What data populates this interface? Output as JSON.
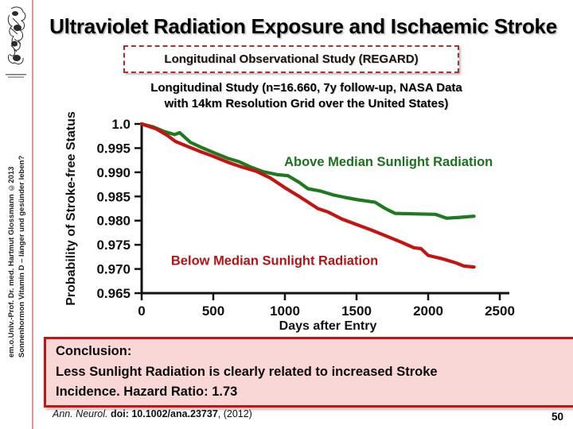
{
  "sidebar": {
    "credit_line1": "em.o.Univ.-Prof. Dr. med. Hartmut Glossmann ©2013",
    "credit_line2": "Sonnenhormon Vitamin D – länger und gesünder leben?"
  },
  "header": {
    "title": "Ultraviolet Radiation Exposure and Ischaemic Stroke",
    "study_badge": "Longitudinal Observational Study (REGARD)"
  },
  "chart_data": {
    "type": "line",
    "title": "Longitudinal Study (n=16.660, 7y follow-up, NASA Data with 14km Resolution Grid over the United States)",
    "title_line1": "Longitudinal Study (n=16.660, 7y follow-up, NASA Data",
    "title_line2": "with 14km Resolution Grid over the United States)",
    "xlabel": "Days after Entry",
    "ylabel": "Probability of Stroke-free Status",
    "xlim": [
      0,
      2500
    ],
    "ylim": [
      0.965,
      1.0
    ],
    "grid": false,
    "x_ticks": [
      0,
      500,
      1000,
      1500,
      2000,
      2500
    ],
    "y_ticks": [
      "1.0",
      "0.995",
      "0.990",
      "0.985",
      "0.980",
      "0.975",
      "0.970",
      "0.965"
    ],
    "y_tick_values": [
      1.0,
      0.995,
      0.99,
      0.985,
      0.98,
      0.975,
      0.97,
      0.965
    ],
    "series": [
      {
        "name": "Above Median Sunlight Radiation",
        "color": "#1f7a1f",
        "label_color": "#1e6f1e",
        "label_anchor": [
          995,
          0.9913
        ],
        "points": [
          [
            0,
            1.0
          ],
          [
            80,
            0.9994
          ],
          [
            160,
            0.9984
          ],
          [
            230,
            0.9978
          ],
          [
            265,
            0.9982
          ],
          [
            340,
            0.9962
          ],
          [
            420,
            0.9951
          ],
          [
            500,
            0.9941
          ],
          [
            600,
            0.9929
          ],
          [
            680,
            0.9922
          ],
          [
            760,
            0.9911
          ],
          [
            850,
            0.9901
          ],
          [
            950,
            0.9895
          ],
          [
            1020,
            0.9893
          ],
          [
            1100,
            0.9879
          ],
          [
            1160,
            0.9866
          ],
          [
            1250,
            0.9861
          ],
          [
            1340,
            0.9853
          ],
          [
            1420,
            0.9848
          ],
          [
            1510,
            0.9843
          ],
          [
            1630,
            0.9838
          ],
          [
            1690,
            0.9827
          ],
          [
            1720,
            0.9822
          ],
          [
            1770,
            0.9815
          ],
          [
            1900,
            0.9814
          ],
          [
            2050,
            0.9813
          ],
          [
            2130,
            0.9805
          ],
          [
            2230,
            0.9807
          ],
          [
            2320,
            0.9809
          ]
        ]
      },
      {
        "name": "Below Median Sunlight Radiation",
        "color": "#c31414",
        "label_color": "#b01515",
        "label_anchor": [
          205,
          0.9708
        ],
        "points": [
          [
            0,
            1.0
          ],
          [
            100,
            0.999
          ],
          [
            180,
            0.9976
          ],
          [
            235,
            0.9964
          ],
          [
            300,
            0.9956
          ],
          [
            400,
            0.9944
          ],
          [
            500,
            0.9933
          ],
          [
            600,
            0.9921
          ],
          [
            700,
            0.9911
          ],
          [
            800,
            0.9902
          ],
          [
            900,
            0.9888
          ],
          [
            1000,
            0.9868
          ],
          [
            1100,
            0.985
          ],
          [
            1230,
            0.9825
          ],
          [
            1300,
            0.9818
          ],
          [
            1400,
            0.9803
          ],
          [
            1500,
            0.9792
          ],
          [
            1600,
            0.9781
          ],
          [
            1700,
            0.9769
          ],
          [
            1800,
            0.9757
          ],
          [
            1900,
            0.9744
          ],
          [
            1950,
            0.9742
          ],
          [
            2000,
            0.9728
          ],
          [
            2100,
            0.9721
          ],
          [
            2200,
            0.9712
          ],
          [
            2250,
            0.9706
          ],
          [
            2320,
            0.9704
          ]
        ]
      }
    ]
  },
  "conclusion": {
    "line1": "Conclusion:",
    "line2": "Less Sunlight Radiation is clearly related to increased Stroke",
    "line3": "Incidence. Hazard Ratio: 1.73"
  },
  "footer": {
    "citation_journal": "Ann. Neurol.",
    "citation_doi": " doi: 10.1002/ana.23737",
    "citation_year": ", (2012)",
    "page_number": "50"
  },
  "colors": {
    "sidebar_divider": "#dd9595",
    "badge_border": "#b03030",
    "conclusion_bg": "#f9d7d7",
    "conclusion_border": "#cc1111",
    "axis": "#111111"
  }
}
